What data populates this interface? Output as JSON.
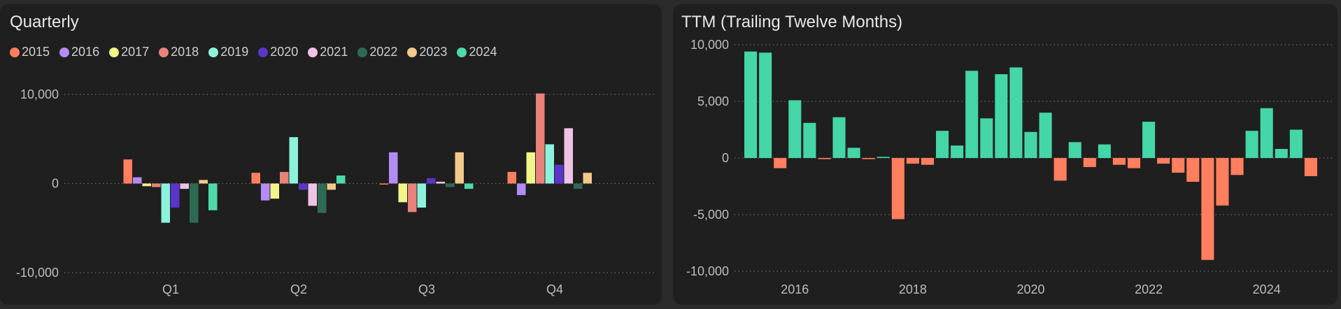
{
  "chart_data": [
    {
      "type": "bar",
      "title": "Quarterly",
      "categories": [
        "Q1",
        "Q2",
        "Q3",
        "Q4"
      ],
      "ylim": [
        -10000,
        10000
      ],
      "yticks": [
        -10000,
        0,
        10000
      ],
      "ytick_labels": [
        "-10,000",
        "0",
        "10,000"
      ],
      "legend": "top-left",
      "grid": "dotted horizontal",
      "series": [
        {
          "name": "2015",
          "color": "#ff7f5e",
          "values": [
            2700,
            1200,
            -100,
            1300
          ]
        },
        {
          "name": "2016",
          "color": "#b38cf5",
          "values": [
            700,
            -1900,
            3500,
            -1300
          ]
        },
        {
          "name": "2017",
          "color": "#f2f58a",
          "values": [
            -300,
            -1700,
            -2100,
            3500
          ]
        },
        {
          "name": "2018",
          "color": "#e8827a",
          "values": [
            -400,
            1300,
            -3200,
            10100
          ]
        },
        {
          "name": "2019",
          "color": "#8cf2dc",
          "values": [
            -4400,
            5200,
            -2700,
            4400
          ]
        },
        {
          "name": "2020",
          "color": "#5b35c9",
          "values": [
            -2700,
            -700,
            600,
            2100
          ]
        },
        {
          "name": "2021",
          "color": "#f0c2e6",
          "values": [
            -600,
            -2500,
            200,
            6200
          ]
        },
        {
          "name": "2022",
          "color": "#2e6b52",
          "values": [
            -4400,
            -3300,
            -400,
            -600
          ]
        },
        {
          "name": "2023",
          "color": "#f2c98a",
          "values": [
            400,
            -700,
            3500,
            1200
          ]
        },
        {
          "name": "2024",
          "color": "#4fd9a8",
          "values": [
            -3000,
            900,
            -600,
            0
          ]
        }
      ]
    },
    {
      "type": "bar",
      "title": "TTM (Trailing Twelve Months)",
      "ylim": [
        -10000,
        10000
      ],
      "yticks": [
        -10000,
        -5000,
        0,
        5000,
        10000
      ],
      "ytick_labels": [
        "-10,000",
        "-5,000",
        "0",
        "5,000",
        "10,000"
      ],
      "x_start_year": 2015.25,
      "x_range": [
        2015,
        2025
      ],
      "xticks": [
        2016,
        2018,
        2020,
        2022,
        2024
      ],
      "xtick_labels": [
        "2016",
        "2018",
        "2020",
        "2022",
        "2024"
      ],
      "positive_color": "#45d6a8",
      "negative_color": "#ff7f5e",
      "grid": "dotted horizontal",
      "values": [
        9400,
        9300,
        -900,
        5100,
        3100,
        -100,
        3600,
        900,
        -100,
        100,
        -5400,
        -500,
        -600,
        2400,
        1100,
        7700,
        3500,
        7400,
        8000,
        2300,
        4000,
        -2000,
        1400,
        -800,
        1200,
        -600,
        -900,
        3200,
        -500,
        -1300,
        -2100,
        -9000,
        -4200,
        -1500,
        2400,
        4400,
        800,
        2500,
        -1600
      ]
    }
  ]
}
